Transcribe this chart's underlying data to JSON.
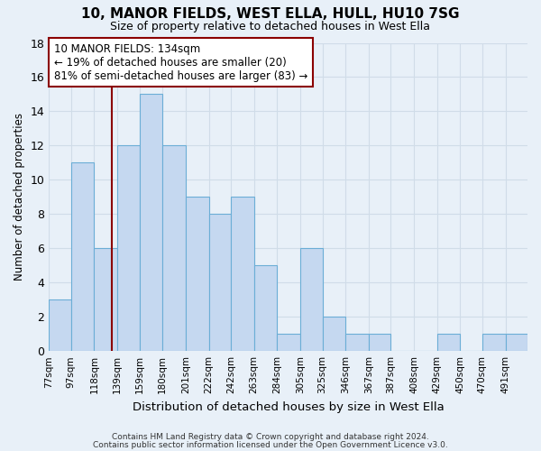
{
  "title": "10, MANOR FIELDS, WEST ELLA, HULL, HU10 7SG",
  "subtitle": "Size of property relative to detached houses in West Ella",
  "xlabel": "Distribution of detached houses by size in West Ella",
  "ylabel": "Number of detached properties",
  "bar_labels": [
    "77sqm",
    "97sqm",
    "118sqm",
    "139sqm",
    "159sqm",
    "180sqm",
    "201sqm",
    "222sqm",
    "242sqm",
    "263sqm",
    "284sqm",
    "305sqm",
    "325sqm",
    "346sqm",
    "367sqm",
    "387sqm",
    "408sqm",
    "429sqm",
    "450sqm",
    "470sqm",
    "491sqm"
  ],
  "bar_values": [
    3,
    11,
    6,
    12,
    15,
    12,
    9,
    8,
    9,
    5,
    1,
    6,
    2,
    1,
    1,
    0,
    0,
    1,
    0,
    1,
    1
  ],
  "bar_color": "#c5d8f0",
  "bar_edgecolor": "#6baed6",
  "bin_edges": [
    77,
    97,
    118,
    139,
    159,
    180,
    201,
    222,
    242,
    263,
    284,
    305,
    325,
    346,
    367,
    387,
    408,
    429,
    450,
    470,
    491,
    511
  ],
  "vline_x": 134,
  "vline_color": "#8b0000",
  "ylim": [
    0,
    18
  ],
  "yticks": [
    0,
    2,
    4,
    6,
    8,
    10,
    12,
    14,
    16,
    18
  ],
  "annotation_line1": "10 MANOR FIELDS: 134sqm",
  "annotation_line2": "← 19% of detached houses are smaller (20)",
  "annotation_line3": "81% of semi-detached houses are larger (83) →",
  "annotation_box_edgecolor": "#8b0000",
  "annotation_box_facecolor": "#ffffff",
  "footer_line1": "Contains HM Land Registry data © Crown copyright and database right 2024.",
  "footer_line2": "Contains public sector information licensed under the Open Government Licence v3.0.",
  "background_color": "#e8f0f8",
  "grid_color": "#d0dce8"
}
